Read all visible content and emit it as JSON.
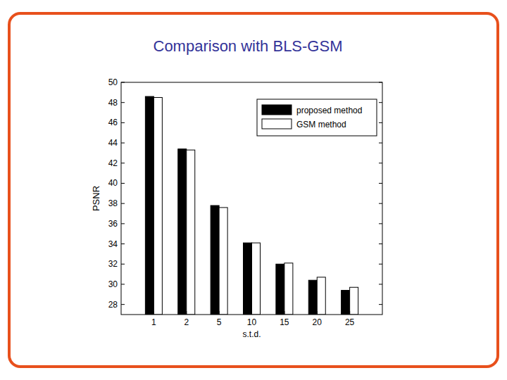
{
  "chart_data": {
    "type": "bar",
    "title": "Comparison with BLS-GSM",
    "x_label": "s.t.d.",
    "y_label": "PSNR",
    "categories": [
      "1",
      "2",
      "5",
      "10",
      "15",
      "20",
      "25"
    ],
    "series": [
      {
        "name": "proposed method",
        "color": "#000000",
        "values": [
          48.6,
          43.4,
          37.8,
          34.1,
          32.0,
          30.4,
          29.4
        ]
      },
      {
        "name": "GSM method",
        "color": "#ffffff",
        "values": [
          48.5,
          43.3,
          37.6,
          34.1,
          32.1,
          30.7,
          29.7
        ]
      }
    ],
    "ylim": [
      27,
      50
    ],
    "yticks": [
      28,
      30,
      32,
      34,
      36,
      38,
      40,
      42,
      44,
      46,
      48,
      50
    ],
    "grid": false,
    "legend": "upper right"
  }
}
